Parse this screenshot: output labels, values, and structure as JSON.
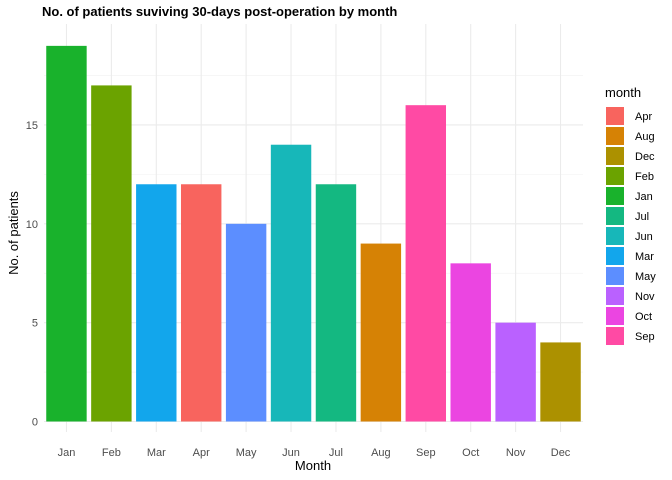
{
  "chart_data": {
    "type": "bar",
    "title": "No. of patients suviving 30-days post-operation by month",
    "xlabel": "Month",
    "ylabel": "No. of patients",
    "categories": [
      "Jan",
      "Feb",
      "Mar",
      "Apr",
      "May",
      "Jun",
      "Jul",
      "Aug",
      "Sep",
      "Oct",
      "Nov",
      "Dec"
    ],
    "values": [
      19,
      17,
      12,
      12,
      10,
      14,
      12,
      9,
      16,
      8,
      5,
      4
    ],
    "ylim": [
      0,
      19.95
    ],
    "yticks": [
      0,
      5,
      10,
      15
    ],
    "grid": true,
    "legend": {
      "title": "month",
      "position": "right",
      "entries": [
        "Apr",
        "Aug",
        "Dec",
        "Feb",
        "Jan",
        "Jul",
        "Jun",
        "Mar",
        "May",
        "Nov",
        "Oct",
        "Sep"
      ]
    },
    "colors": {
      "Jan": "#19B22C",
      "Feb": "#6BA300",
      "Mar": "#12A6EC",
      "Apr": "#F8645E",
      "May": "#5C8EFF",
      "Jun": "#17B7B9",
      "Jul": "#14B881",
      "Aug": "#D68205",
      "Sep": "#FF4AA4",
      "Oct": "#EB45E1",
      "Nov": "#BA61FF",
      "Dec": "#AC9100"
    }
  }
}
